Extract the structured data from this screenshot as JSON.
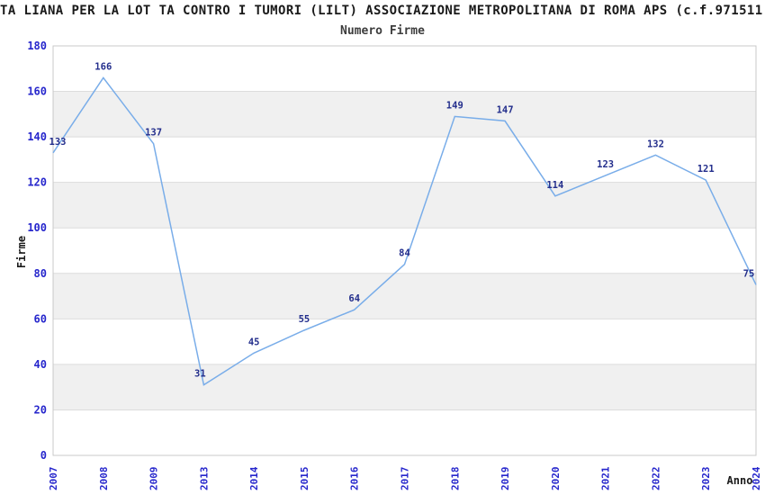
{
  "title": "TA LIANA PER LA LOT TA CONTRO I TUMORI (LILT) ASSOCIAZIONE METROPOLITANA DI ROMA APS (c.f.971511",
  "subtitle": "Numero Firme",
  "chart_data": {
    "type": "line",
    "title": "Numero Firme",
    "xlabel": "Anno",
    "ylabel": "Firme",
    "categories": [
      "2007",
      "2008",
      "2009",
      "2013",
      "2014",
      "2015",
      "2016",
      "2017",
      "2018",
      "2019",
      "2020",
      "2021",
      "2022",
      "2023",
      "2024"
    ],
    "values": [
      133,
      166,
      137,
      31,
      45,
      55,
      64,
      84,
      149,
      147,
      114,
      123,
      132,
      121,
      75
    ],
    "ylim": [
      0,
      180
    ],
    "ytick_step": 20,
    "yticks": [
      0,
      20,
      40,
      60,
      80,
      100,
      120,
      140,
      160,
      180
    ],
    "grid": true,
    "legend_position": "none",
    "plot_bands_gray": [
      [
        20,
        40
      ],
      [
        60,
        80
      ],
      [
        100,
        120
      ],
      [
        140,
        160
      ]
    ],
    "colors": {
      "line": "#79ade9",
      "tick_label": "#2626cc",
      "data_label": "#232e8c",
      "band_gray": "#f0f0f0",
      "band_white": "#ffffff",
      "plot_border": "#c9c9c9",
      "gridline": "#dcdcdc",
      "title": "#1a1a1a",
      "subtitle": "#3d3d3d",
      "axis_title": "#1a1a1a"
    }
  }
}
